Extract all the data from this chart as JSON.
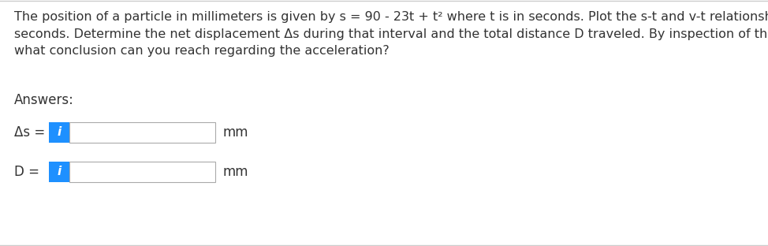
{
  "background_color": "#ffffff",
  "top_line_color": "#cccccc",
  "bottom_line_color": "#cccccc",
  "paragraph_text": "The position of a particle in millimeters is given by s = 90 - 23t + t² where t is in seconds. Plot the s-t and v-t relationships for the first 18\nseconds. Determine the net displacement Δs during that interval and the total distance D traveled. By inspection of the s-t relationship,\nwhat conclusion can you reach regarding the acceleration?",
  "answers_label": "Answers:",
  "row1_label": "Δs =",
  "row2_label": "D =",
  "unit_label": "mm",
  "button_color": "#1e90ff",
  "button_text": "i",
  "button_text_color": "#ffffff",
  "input_border_color": "#aaaaaa",
  "input_bg_color": "#ffffff",
  "text_color": "#333333",
  "text_fontsize": 11.5,
  "answers_fontsize": 12,
  "label_fontsize": 12,
  "fig_width": 9.74,
  "fig_height": 3.12,
  "dpi": 100
}
